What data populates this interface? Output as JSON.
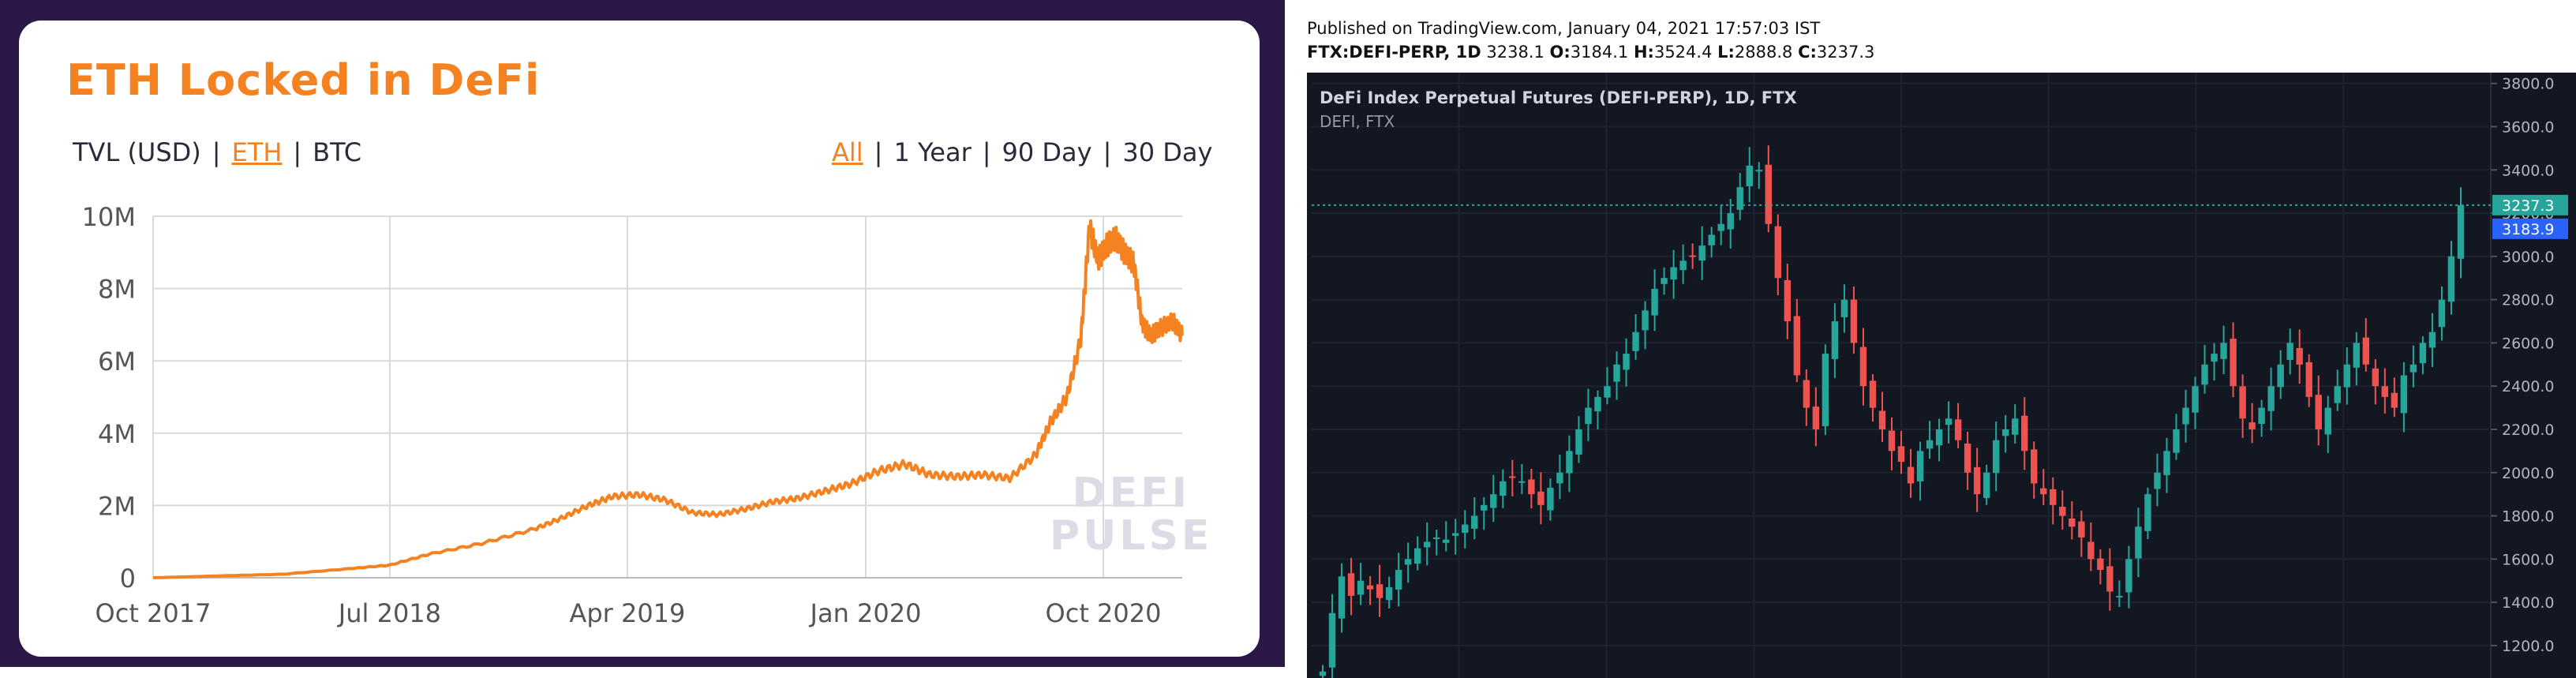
{
  "left": {
    "title": "ETH Locked in DeFi",
    "controls_left": [
      "TVL (USD)",
      "ETH",
      "BTC"
    ],
    "controls_left_active": 1,
    "controls_right": [
      "All",
      "1 Year",
      "90 Day",
      "30 Day"
    ],
    "controls_right_active": 0,
    "watermark": [
      "DEFI",
      "PULSE"
    ],
    "colors": {
      "accent": "#f58220",
      "frame": "#2b1848",
      "grid": "#d9d9d9",
      "text": "#2a2a3a"
    }
  },
  "right": {
    "published": "Published on TradingView.com, January 04, 2021 17:57:03 IST",
    "ohlc": {
      "symbol": "FTX:DEFI-PERP, 1D",
      "last": "3238.1",
      "o_label": "O:",
      "o": "3184.1",
      "h_label": "H:",
      "h": "3524.4",
      "l_label": "L:",
      "l": "2888.8",
      "c_label": "C:",
      "c": "3237.3"
    },
    "chart_title": "DeFi Index Perpetual Futures (DEFI-PERP), 1D, FTX",
    "chart_subtitle": "DEFI, FTX",
    "colors": {
      "bg": "#131722",
      "up": "#26a69a",
      "down": "#ef5350",
      "price_line": "#26a69a",
      "secondary_tag": "#2962ff",
      "axis_text": "#b2b5be"
    }
  },
  "chart_data": [
    {
      "type": "area",
      "title": "ETH Locked in DeFi",
      "xlabel": "",
      "ylabel": "",
      "x_ticks": [
        "Oct 2017",
        "Jul 2018",
        "Apr 2019",
        "Jan 2020",
        "Oct 2020"
      ],
      "y_ticks": [
        "0",
        "2M",
        "4M",
        "6M",
        "8M",
        "10M"
      ],
      "ylim": [
        0,
        10000000
      ],
      "grid": true,
      "series": [
        {
          "x": [
            "2017-10-01",
            "2017-12-15",
            "2018-03-01",
            "2018-05-15",
            "2018-07-01",
            "2018-08-15",
            "2018-10-15",
            "2018-12-15",
            "2019-01-15",
            "2019-02-15",
            "2019-03-15",
            "2019-04-15",
            "2019-05-15",
            "2019-06-15",
            "2019-07-15",
            "2019-08-15",
            "2019-09-15",
            "2019-10-15",
            "2019-11-15",
            "2019-12-15",
            "2020-01-15",
            "2020-02-15",
            "2020-03-15",
            "2020-04-15",
            "2020-05-15",
            "2020-06-15",
            "2020-07-15",
            "2020-08-01",
            "2020-08-20",
            "2020-09-05",
            "2020-09-15",
            "2020-09-25",
            "2020-10-05",
            "2020-10-15",
            "2020-10-25",
            "2020-11-05",
            "2020-11-15",
            "2020-11-25",
            "2020-12-05",
            "2020-12-20",
            "2020-12-31"
          ],
          "values": [
            0,
            50000,
            100000,
            250000,
            350000,
            650000,
            950000,
            1350000,
            1650000,
            2000000,
            2250000,
            2300000,
            2150000,
            1800000,
            1750000,
            1900000,
            2100000,
            2200000,
            2400000,
            2600000,
            2950000,
            3150000,
            2850000,
            2800000,
            2850000,
            2750000,
            3400000,
            4300000,
            5000000,
            6600000,
            9700000,
            8800000,
            9200000,
            9400000,
            9000000,
            8700000,
            7000000,
            6700000,
            6900000,
            7100000,
            6700000
          ]
        }
      ]
    },
    {
      "type": "line",
      "title": "DeFi Index Perpetual Futures (DEFI-PERP), 1D, FTX",
      "xlabel": "",
      "ylabel": "",
      "y_ticks": [
        "1200.0",
        "1400.0",
        "1600.0",
        "1800.0",
        "2000.0",
        "2200.0",
        "2400.0",
        "2600.0",
        "2800.0",
        "3000.0",
        "3200.0",
        "3400.0",
        "3600.0",
        "3800.0"
      ],
      "ylim": [
        1050,
        3850
      ],
      "grid": true,
      "price_tags": [
        "3237.3",
        "3183.9"
      ],
      "close": [
        1080,
        1350,
        1520,
        1430,
        1500,
        1460,
        1420,
        1470,
        1550,
        1600,
        1650,
        1680,
        1700,
        1690,
        1720,
        1760,
        1800,
        1850,
        1900,
        1960,
        1980,
        1960,
        1900,
        1850,
        1930,
        2000,
        2100,
        2200,
        2300,
        2350,
        2400,
        2500,
        2550,
        2650,
        2750,
        2850,
        2900,
        2950,
        2980,
        3000,
        3050,
        3100,
        3150,
        3200,
        3320,
        3420,
        3400,
        3150,
        2900,
        2700,
        2450,
        2300,
        2200,
        2550,
        2700,
        2800,
        2600,
        2400,
        2300,
        2200,
        2100,
        2050,
        1950,
        2100,
        2150,
        2200,
        2250,
        2150,
        2000,
        1900,
        2000,
        2150,
        2200,
        2250,
        2100,
        1950,
        1900,
        1850,
        1800,
        1750,
        1700,
        1600,
        1550,
        1450,
        1430,
        1600,
        1750,
        1900,
        2000,
        2100,
        2200,
        2300,
        2400,
        2500,
        2550,
        2600,
        2400,
        2250,
        2200,
        2300,
        2400,
        2500,
        2600,
        2500,
        2350,
        2200,
        2300,
        2400,
        2500,
        2600,
        2500,
        2400,
        2350,
        2300,
        2450,
        2500,
        2600,
        2650,
        2800,
        3000,
        3237
      ]
    }
  ]
}
